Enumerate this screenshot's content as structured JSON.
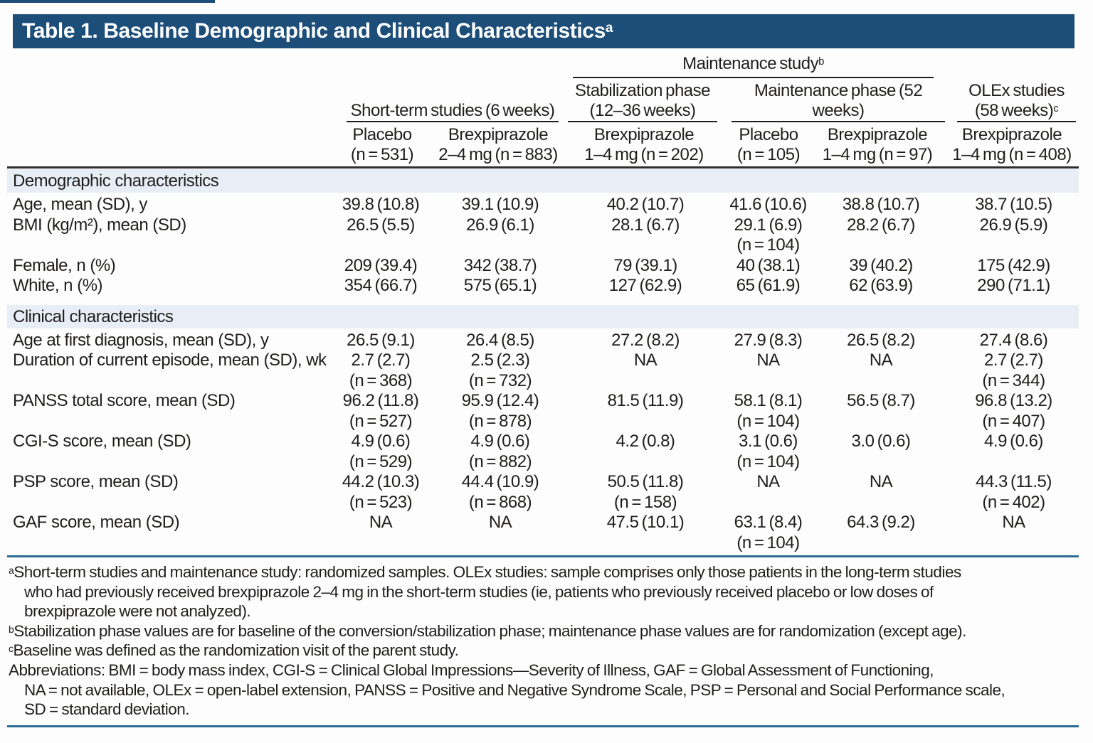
{
  "title": {
    "text": "Table 1. Baseline Demographic and Clinical Characteristics",
    "sup": "a"
  },
  "header": {
    "maintenance_group": {
      "label": "Maintenance study",
      "sup": "b"
    },
    "groups": [
      {
        "line1": "Short-term studies (6 weeks)",
        "line2": ""
      },
      {
        "line1": "Stabilization phase",
        "line2": "(12–36 weeks)"
      },
      {
        "line1": "Maintenance phase (52",
        "line2": "weeks)"
      },
      {
        "line1": "OLEx studies",
        "line2": "(58 weeks)",
        "sup": "c"
      }
    ],
    "columns": [
      {
        "line1": "Placebo",
        "line2": "(n = 531)"
      },
      {
        "line1": "Brexpiprazole",
        "line2": "2–4 mg (n = 883)"
      },
      {
        "line1": "Brexpiprazole",
        "line2": "1–4 mg (n = 202)"
      },
      {
        "line1": "Placebo",
        "line2": "(n = 105)"
      },
      {
        "line1": "Brexpiprazole",
        "line2": "1–4 mg (n = 97)"
      },
      {
        "line1": "Brexpiprazole",
        "line2": "1–4 mg (n = 408)"
      }
    ]
  },
  "sections": [
    {
      "label": "Demographic characteristics",
      "rows": [
        {
          "label": "Age, mean (SD), y",
          "cells": [
            [
              "39.8 (10.8)"
            ],
            [
              "39.1 (10.9)"
            ],
            [
              "40.2 (10.7)"
            ],
            [
              "41.6 (10.6)"
            ],
            [
              "38.8 (10.7)"
            ],
            [
              "38.7 (10.5)"
            ]
          ]
        },
        {
          "label": "BMI (kg/m²), mean (SD)",
          "cells": [
            [
              "26.5 (5.5)"
            ],
            [
              "26.9 (6.1)"
            ],
            [
              "28.1 (6.7)"
            ],
            [
              "29.1 (6.9)",
              "(n = 104)"
            ],
            [
              "28.2 (6.7)"
            ],
            [
              "26.9 (5.9)"
            ]
          ]
        },
        {
          "label": "Female, n (%)",
          "cells": [
            [
              "209 (39.4)"
            ],
            [
              "342 (38.7)"
            ],
            [
              "79 (39.1)"
            ],
            [
              "40 (38.1)"
            ],
            [
              "39 (40.2)"
            ],
            [
              "175 (42.9)"
            ]
          ]
        },
        {
          "label": "White, n (%)",
          "cells": [
            [
              "354 (66.7)"
            ],
            [
              "575 (65.1)"
            ],
            [
              "127 (62.9)"
            ],
            [
              "65 (61.9)"
            ],
            [
              "62 (63.9)"
            ],
            [
              "290 (71.1)"
            ]
          ]
        }
      ]
    },
    {
      "label": "Clinical characteristics",
      "rows": [
        {
          "label": "Age at first diagnosis, mean (SD), y",
          "cells": [
            [
              "26.5 (9.1)"
            ],
            [
              "26.4 (8.5)"
            ],
            [
              "27.2 (8.2)"
            ],
            [
              "27.9 (8.3)"
            ],
            [
              "26.5 (8.2)"
            ],
            [
              "27.4 (8.6)"
            ]
          ]
        },
        {
          "label": "Duration of current episode, mean (SD), wk",
          "cells": [
            [
              "2.7 (2.7)",
              "(n = 368)"
            ],
            [
              "2.5 (2.3)",
              "(n = 732)"
            ],
            [
              "NA"
            ],
            [
              "NA"
            ],
            [
              "NA"
            ],
            [
              "2.7 (2.7)",
              "(n = 344)"
            ]
          ]
        },
        {
          "label": "PANSS total score, mean (SD)",
          "cells": [
            [
              "96.2 (11.8)",
              "(n = 527)"
            ],
            [
              "95.9 (12.4)",
              "(n = 878)"
            ],
            [
              "81.5 (11.9)"
            ],
            [
              "58.1 (8.1)",
              "(n = 104)"
            ],
            [
              "56.5 (8.7)"
            ],
            [
              "96.8 (13.2)",
              "(n = 407)"
            ]
          ]
        },
        {
          "label": "CGI-S score, mean (SD)",
          "cells": [
            [
              "4.9 (0.6)",
              "(n = 529)"
            ],
            [
              "4.9 (0.6)",
              "(n = 882)"
            ],
            [
              "4.2 (0.8)"
            ],
            [
              "3.1 (0.6)",
              "(n = 104)"
            ],
            [
              "3.0 (0.6)"
            ],
            [
              "4.9 (0.6)"
            ]
          ]
        },
        {
          "label": "PSP score, mean (SD)",
          "cells": [
            [
              "44.2 (10.3)",
              "(n = 523)"
            ],
            [
              "44.4 (10.9)",
              "(n = 868)"
            ],
            [
              "50.5 (11.8)",
              "(n = 158)"
            ],
            [
              "NA"
            ],
            [
              "NA"
            ],
            [
              "44.3 (11.5)",
              "(n = 402)"
            ]
          ]
        },
        {
          "label": "GAF score, mean (SD)",
          "cells": [
            [
              "NA"
            ],
            [
              "NA"
            ],
            [
              "47.5 (10.1)"
            ],
            [
              "63.1 (8.4)",
              "(n = 104)"
            ],
            [
              "64.3 (9.2)"
            ],
            [
              "NA"
            ]
          ]
        }
      ]
    }
  ],
  "footnotes": [
    {
      "sup": "a",
      "indent": false,
      "text": "Short-term studies and maintenance study: randomized samples. OLEx studies: sample comprises only those patients in the long-term studies"
    },
    {
      "sup": "",
      "indent": true,
      "text": "who had previously received brexpiprazole 2–4 mg in the short-term studies (ie, patients who previously received placebo or low doses of"
    },
    {
      "sup": "",
      "indent": true,
      "text": "brexpiprazole were not analyzed)."
    },
    {
      "sup": "b",
      "indent": false,
      "text": "Stabilization phase values are for baseline of the conversion/stabilization phase; maintenance phase values are for randomization (except age)."
    },
    {
      "sup": "c",
      "indent": false,
      "text": "Baseline was defined as the randomization visit of the parent study."
    },
    {
      "sup": "",
      "indent": false,
      "text": "Abbreviations: BMI = body mass index, CGI-S = Clinical Global Impressions—Severity of Illness, GAF = Global Assessment of Functioning,"
    },
    {
      "sup": "",
      "indent": true,
      "text": "NA = not available, OLEx = open-label extension, PANSS = Positive and Negative Syndrome Scale, PSP = Personal and Social Performance scale,"
    },
    {
      "sup": "",
      "indent": true,
      "text": "SD = standard deviation."
    }
  ],
  "colors": {
    "banner_blue": "#1d4e79",
    "band_blue": "#e8eef6",
    "rule_blue": "#2c6c94",
    "rule_dark": "#302e2c"
  }
}
